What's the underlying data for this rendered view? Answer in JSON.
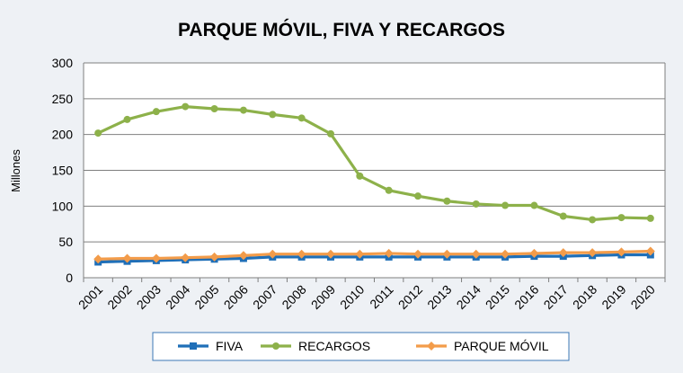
{
  "chart_data": {
    "type": "line",
    "title": "PARQUE MÓVIL, FIVA Y RECARGOS",
    "xlabel": "",
    "ylabel": "Millones",
    "ylim": [
      0,
      300
    ],
    "yticks": [
      0,
      50,
      100,
      150,
      200,
      250,
      300
    ],
    "grid": true,
    "legend_position": "bottom",
    "categories": [
      "2001",
      "2002",
      "2003",
      "2004",
      "2005",
      "2006",
      "2007",
      "2008",
      "2009",
      "2010",
      "2011",
      "2012",
      "2013",
      "2014",
      "2015",
      "2016",
      "2017",
      "2018",
      "2019",
      "2020"
    ],
    "series": [
      {
        "name": "FIVA",
        "color": "#1f6fb8",
        "marker": "square",
        "values": [
          22,
          23,
          24,
          25,
          26,
          27,
          29,
          29,
          29,
          29,
          29,
          29,
          29,
          29,
          29,
          30,
          30,
          31,
          32,
          32
        ]
      },
      {
        "name": "RECARGOS",
        "color": "#8db14a",
        "marker": "circle",
        "values": [
          202,
          221,
          232,
          239,
          236,
          234,
          228,
          223,
          201,
          142,
          122,
          114,
          107,
          103,
          101,
          101,
          86,
          81,
          84,
          83
        ]
      },
      {
        "name": "PARQUE MÓVIL",
        "color": "#f39c4a",
        "marker": "diamond",
        "values": [
          26,
          27,
          27,
          28,
          29,
          31,
          33,
          33,
          33,
          33,
          34,
          33,
          33,
          33,
          33,
          34,
          35,
          35,
          36,
          37
        ]
      }
    ]
  }
}
